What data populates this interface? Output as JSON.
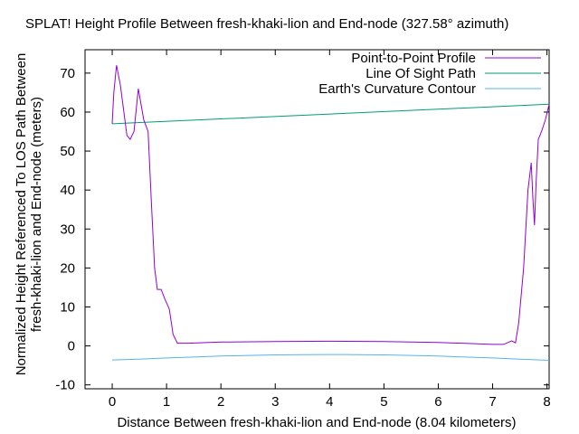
{
  "chart_data": {
    "type": "line",
    "title": "SPLAT! Height Profile Between fresh-khaki-lion and End-node (327.58° azimuth)",
    "xlabel": "Distance Between fresh-khaki-lion and End-node (8.04 kilometers)",
    "ylabel_line1": "Normalized Height Referenced To LOS Path Between",
    "ylabel_line2": "fresh-khaki-lion and End-node (meters)",
    "xlim": [
      -0.5,
      8.04
    ],
    "ylim": [
      -11,
      76
    ],
    "x_ticks": [
      "0",
      "1",
      "2",
      "3",
      "4",
      "5",
      "6",
      "7",
      "8"
    ],
    "y_ticks": [
      "-10",
      "0",
      "10",
      "20",
      "30",
      "40",
      "50",
      "60",
      "70"
    ],
    "grid": false,
    "legend_position": "top-right",
    "series": [
      {
        "name": "Point-to-Point Profile",
        "color": "#9400d3",
        "x": [
          0,
          0.03,
          0.08,
          0.15,
          0.27,
          0.33,
          0.4,
          0.48,
          0.58,
          0.66,
          0.72,
          0.78,
          0.83,
          0.9,
          0.97,
          1.05,
          1.12,
          1.2,
          1.4,
          2.0,
          3.0,
          4.0,
          5.0,
          6.0,
          7.0,
          7.2,
          7.35,
          7.42,
          7.48,
          7.57,
          7.65,
          7.71,
          7.74,
          7.77,
          7.8,
          7.84,
          7.9,
          7.97,
          8.04
        ],
        "y": [
          57,
          65,
          72,
          67,
          54,
          53,
          55,
          66,
          58,
          55,
          37,
          20,
          14.5,
          14.5,
          12,
          9.5,
          3,
          0.7,
          0.7,
          1,
          1.1,
          1.2,
          1.1,
          0.9,
          0.4,
          0.4,
          1.3,
          0.8,
          6,
          20,
          40,
          47,
          38,
          31,
          42,
          53,
          55,
          58,
          62
        ]
      },
      {
        "name": "Line Of Sight Path",
        "color": "#009e73",
        "x": [
          0,
          8.04
        ],
        "y": [
          57,
          62
        ]
      },
      {
        "name": "Earth's Curvature Contour",
        "color": "#56b4e9",
        "x": [
          0,
          0.5,
          1,
          1.5,
          2,
          2.5,
          3,
          3.5,
          4,
          4.5,
          5,
          5.5,
          6,
          6.5,
          7,
          7.5,
          8.04
        ],
        "y": [
          -3.6,
          -3.4,
          -3.1,
          -2.85,
          -2.6,
          -2.45,
          -2.3,
          -2.22,
          -2.2,
          -2.22,
          -2.3,
          -2.45,
          -2.6,
          -2.85,
          -3.1,
          -3.4,
          -3.7
        ]
      }
    ]
  }
}
